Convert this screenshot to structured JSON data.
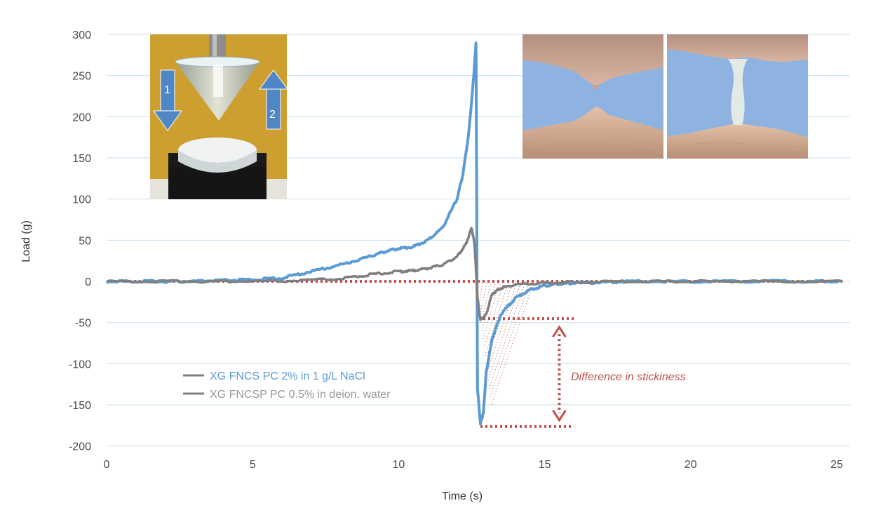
{
  "chart_data": {
    "type": "line",
    "xlabel": "Time (s)",
    "ylabel": "Load (g)",
    "xlim": [
      0,
      25.5
    ],
    "ylim": [
      -200,
      300
    ],
    "x_ticks": [
      0,
      5,
      10,
      15,
      20,
      25
    ],
    "y_ticks": [
      300,
      250,
      200,
      150,
      100,
      50,
      0,
      -50,
      -100,
      -150,
      -200
    ],
    "grid": "horizontal",
    "legend_position": "lower-left",
    "series": [
      {
        "name": "XG FNCS PC 2% in 1 g/L NaCl",
        "color": "#5b9bd5",
        "x": [
          0,
          1,
          2,
          3,
          4,
          5,
          6,
          7,
          8,
          9,
          9.5,
          10,
          10.5,
          11,
          11.5,
          12,
          12.2,
          12.4,
          12.55,
          12.65,
          12.7,
          12.8,
          12.9,
          13.0,
          13.2,
          13.5,
          14,
          14.5,
          15,
          15.5,
          16,
          17,
          18,
          20,
          22,
          24,
          25.2
        ],
        "y": [
          0,
          0,
          0,
          0,
          1,
          2,
          4,
          12,
          20,
          30,
          36,
          40,
          42,
          50,
          65,
          100,
          130,
          180,
          240,
          290,
          -130,
          -172,
          -160,
          -110,
          -70,
          -40,
          -20,
          -10,
          -5,
          -3,
          -2,
          -1,
          0,
          0,
          0,
          0,
          0
        ]
      },
      {
        "name": "XG FNCSP PC 0.5% in deion. water",
        "color": "#7f7f7f",
        "x": [
          0,
          2,
          4,
          6,
          8,
          9,
          10,
          10.5,
          11,
          11.5,
          12,
          12.3,
          12.5,
          12.6,
          12.7,
          12.8,
          13,
          13.2,
          13.5,
          14,
          15,
          16,
          18,
          20,
          22,
          25.2
        ],
        "y": [
          0,
          0,
          0,
          0,
          3,
          8,
          12,
          13,
          16,
          20,
          30,
          45,
          65,
          45,
          -20,
          -47,
          -40,
          -15,
          -8,
          -4,
          -2,
          -1,
          0,
          0,
          0,
          0
        ]
      }
    ],
    "annotations": [
      {
        "text": "Difference in stickiness",
        "color": "#c0504d"
      }
    ]
  },
  "insets": {
    "left_photo": {
      "step_1": "1",
      "step_2": "2"
    }
  },
  "colors": {
    "grid": "#c9dfee",
    "reference": "#c0504d",
    "blue_series": "#5b9bd5",
    "grey_series": "#7f7f7f",
    "photo_background": "#c89a2a",
    "skin_background": "#8fb3e0"
  }
}
